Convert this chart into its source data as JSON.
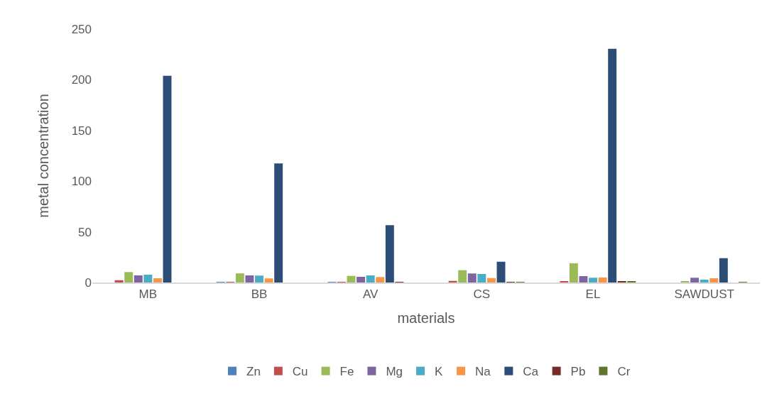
{
  "chart_data": {
    "type": "bar",
    "xlabel": "materials",
    "ylabel": "metal concentration",
    "categories": [
      "MB",
      "BB",
      "AV",
      "CS",
      "EL",
      "SAWDUST"
    ],
    "series": [
      {
        "name": "Zn",
        "color": "#4f81bd",
        "values": [
          0,
          0.2,
          0.2,
          0,
          0,
          0
        ]
      },
      {
        "name": "Cu",
        "color": "#c0504d",
        "values": [
          2.3,
          0.5,
          0.3,
          1.6,
          1.4,
          0
        ]
      },
      {
        "name": "Fe",
        "color": "#9bbb59",
        "values": [
          10.3,
          9,
          6.5,
          12.1,
          19,
          1.4
        ]
      },
      {
        "name": "Mg",
        "color": "#8064a2",
        "values": [
          7,
          7,
          5.6,
          8.9,
          6.3,
          4.7
        ]
      },
      {
        "name": "K",
        "color": "#4bacc6",
        "values": [
          7.7,
          6.8,
          7,
          8.4,
          4.7,
          2.8
        ]
      },
      {
        "name": "Na",
        "color": "#f79646",
        "values": [
          4.2,
          4,
          5.4,
          4.4,
          4.9,
          4.2
        ]
      },
      {
        "name": "Ca",
        "color": "#2c4d75",
        "values": [
          204,
          117.5,
          56.5,
          20.5,
          230.5,
          24
        ]
      },
      {
        "name": "Pb",
        "color": "#772c2a",
        "values": [
          0,
          0,
          0.2,
          0.5,
          0.8,
          0
        ]
      },
      {
        "name": "Cr",
        "color": "#5f7530",
        "values": [
          0,
          0,
          0,
          0.7,
          0.8,
          0.5
        ]
      }
    ],
    "ylim": [
      0,
      250
    ],
    "yticks": [
      0,
      50,
      100,
      150,
      200,
      250
    ],
    "grid": false,
    "legend": "bottom"
  }
}
